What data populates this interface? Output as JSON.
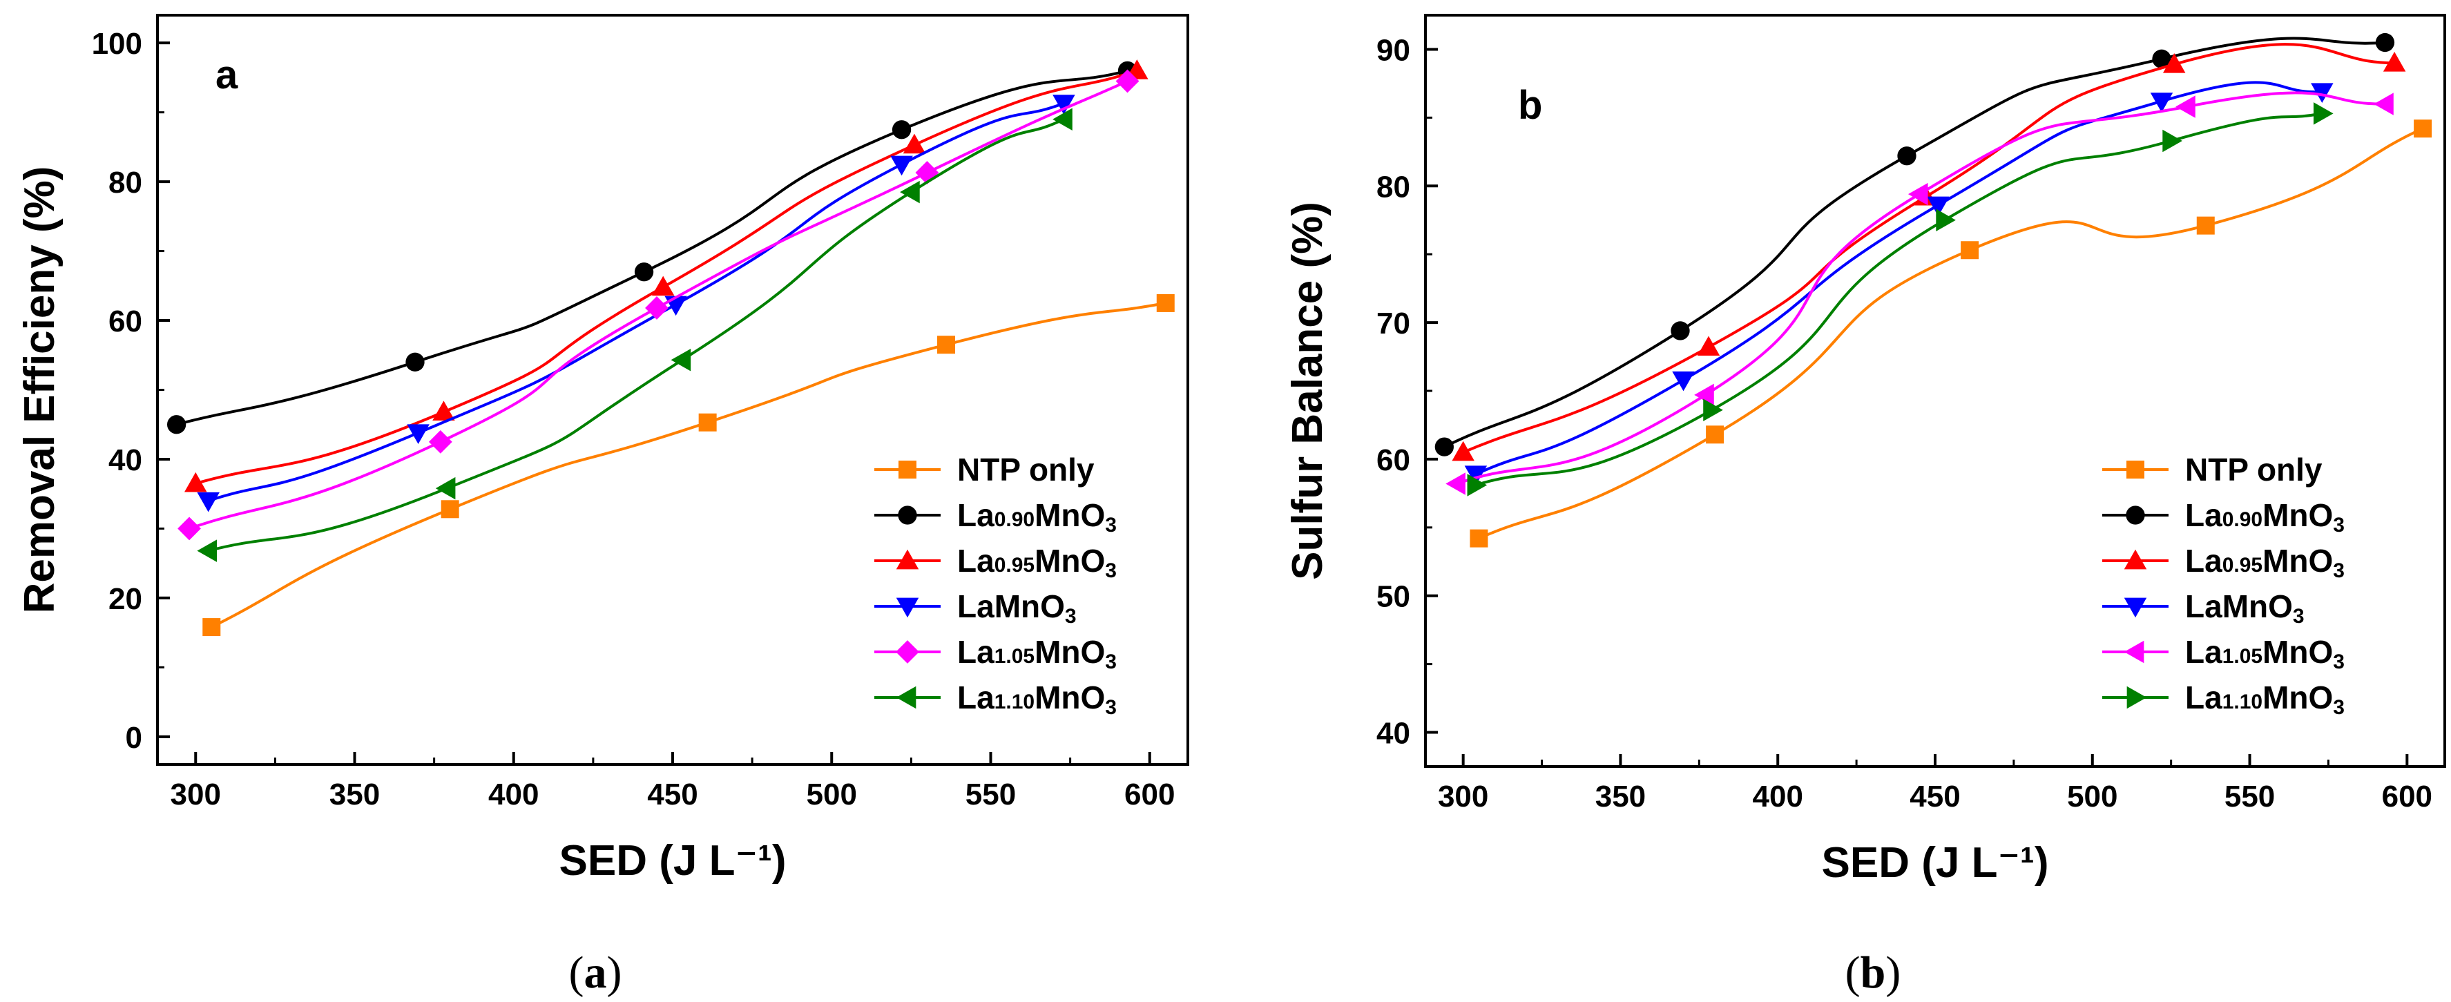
{
  "chart_data": [
    {
      "type": "line",
      "panel_letter": "a",
      "caption": "(a)",
      "caption_letter": "a",
      "xlabel": "SED (J L⁻¹)",
      "ylabel": "Removal Efficieny (%)",
      "xlim": [
        288,
        612
      ],
      "ylim": [
        -4,
        104
      ],
      "xticks": [
        300,
        350,
        400,
        450,
        500,
        550,
        600
      ],
      "yticks": [
        0,
        20,
        40,
        60,
        80,
        100
      ],
      "legend_position": "bottom-right",
      "series": [
        {
          "name": "NTP only",
          "color": "#ff8000",
          "marker": "square",
          "x": [
            305,
            380,
            461,
            536,
            605
          ],
          "y": [
            15.8,
            32.8,
            45.3,
            56.5,
            62.5
          ]
        },
        {
          "name": "La0.90MnO3",
          "color": "#000000",
          "marker": "circle",
          "x": [
            294,
            369,
            441,
            522,
            593
          ],
          "y": [
            45.0,
            54.0,
            67.0,
            87.5,
            96.0
          ]
        },
        {
          "name": "La0.95MnO3",
          "color": "#ff0000",
          "marker": "triangle-up",
          "x": [
            300,
            378,
            447,
            526,
            596
          ],
          "y": [
            36.5,
            46.8,
            64.8,
            85.3,
            96.0
          ]
        },
        {
          "name": "LaMnO3",
          "color": "#0000ff",
          "marker": "triangle-down",
          "x": [
            304,
            370,
            451,
            522,
            573
          ],
          "y": [
            34.0,
            43.8,
            62.3,
            82.5,
            91.3
          ]
        },
        {
          "name": "La1.05MnO3",
          "color": "#ff00ff",
          "marker": "diamond",
          "x": [
            298,
            377,
            445,
            530,
            593
          ],
          "y": [
            30.0,
            42.5,
            61.8,
            81.3,
            94.5
          ]
        },
        {
          "name": "La1.10MnO3",
          "color": "#008000",
          "marker": "triangle-left",
          "x": [
            304,
            379,
            453,
            525,
            573
          ],
          "y": [
            26.8,
            35.8,
            54.3,
            78.5,
            89.0
          ]
        }
      ]
    },
    {
      "type": "line",
      "panel_letter": "b",
      "caption": "(b)",
      "caption_letter": "b",
      "xlabel": "SED (J L⁻¹)",
      "ylabel": "Sulfur Balance (%)",
      "xlim": [
        288,
        612
      ],
      "ylim": [
        37.5,
        92.5
      ],
      "xticks": [
        300,
        350,
        400,
        450,
        500,
        550,
        600
      ],
      "yticks": [
        40,
        50,
        60,
        70,
        80,
        90
      ],
      "legend_position": "bottom-right",
      "series": [
        {
          "name": "NTP only",
          "color": "#ff8000",
          "marker": "square",
          "x": [
            305,
            380,
            461,
            536,
            605
          ],
          "y": [
            54.2,
            61.8,
            75.3,
            77.1,
            84.2
          ]
        },
        {
          "name": "La0.90MnO3",
          "color": "#000000",
          "marker": "circle",
          "x": [
            294,
            369,
            441,
            522,
            593
          ],
          "y": [
            60.9,
            69.4,
            82.2,
            89.3,
            90.5
          ]
        },
        {
          "name": "La0.95MnO3",
          "color": "#ff0000",
          "marker": "triangle-up",
          "x": [
            300,
            378,
            447,
            526,
            596
          ],
          "y": [
            60.5,
            68.2,
            79.2,
            88.9,
            89.0
          ]
        },
        {
          "name": "LaMnO3",
          "color": "#0000ff",
          "marker": "triangle-down",
          "x": [
            304,
            370,
            451,
            522,
            573
          ],
          "y": [
            58.9,
            65.8,
            78.6,
            86.2,
            86.9
          ]
        },
        {
          "name": "La1.05MnO3",
          "color": "#ff00ff",
          "marker": "triangle-left",
          "x": [
            298,
            377,
            445,
            530,
            593
          ],
          "y": [
            58.2,
            64.7,
            79.4,
            85.8,
            86.0
          ]
        },
        {
          "name": "La1.10MnO3",
          "color": "#008000",
          "marker": "triangle-right",
          "x": [
            304,
            379,
            453,
            525,
            573
          ],
          "y": [
            58.1,
            63.6,
            77.5,
            83.3,
            85.3
          ]
        }
      ]
    }
  ]
}
